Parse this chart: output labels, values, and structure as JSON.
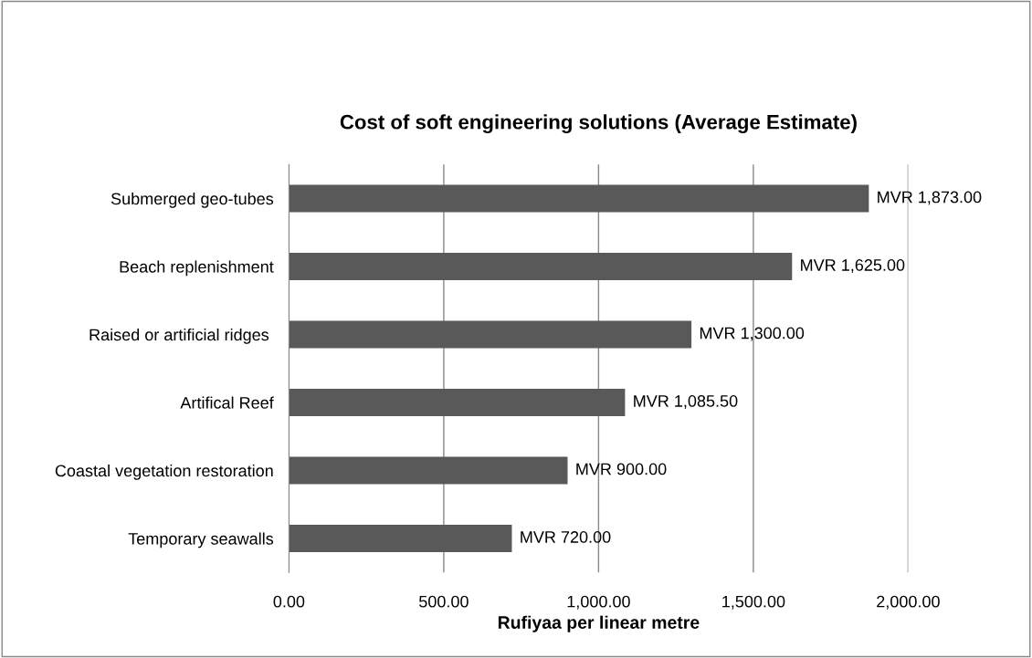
{
  "chart_data": {
    "type": "bar",
    "orientation": "horizontal",
    "title": "Cost of soft engineering solutions (Average Estimate)",
    "xlabel": "Rufiyaa per linear metre",
    "categories": [
      "Submerged geo-tubes",
      "Beach replenishment",
      "Raised or artificial ridges ",
      "Artifical Reef",
      "Coastal vegetation restoration",
      "Temporary seawalls"
    ],
    "values": [
      1873,
      1625,
      1300,
      1085.5,
      900,
      720
    ],
    "value_labels": [
      "MVR 1,873.00",
      "MVR 1,625.00",
      "MVR 1,300.00",
      "MVR 1,085.50",
      "MVR 900.00",
      "MVR 720.00"
    ],
    "color": "#595959",
    "xlim": [
      0,
      2000
    ],
    "xticks": [
      {
        "value": 0,
        "label": "0.00"
      },
      {
        "value": 500,
        "label": "500.00"
      },
      {
        "value": 1000,
        "label": "1,000.00"
      },
      {
        "value": 1500,
        "label": "1,500.00"
      },
      {
        "value": 2000,
        "label": "2,000.00"
      }
    ],
    "grid": "x",
    "legend": false
  }
}
